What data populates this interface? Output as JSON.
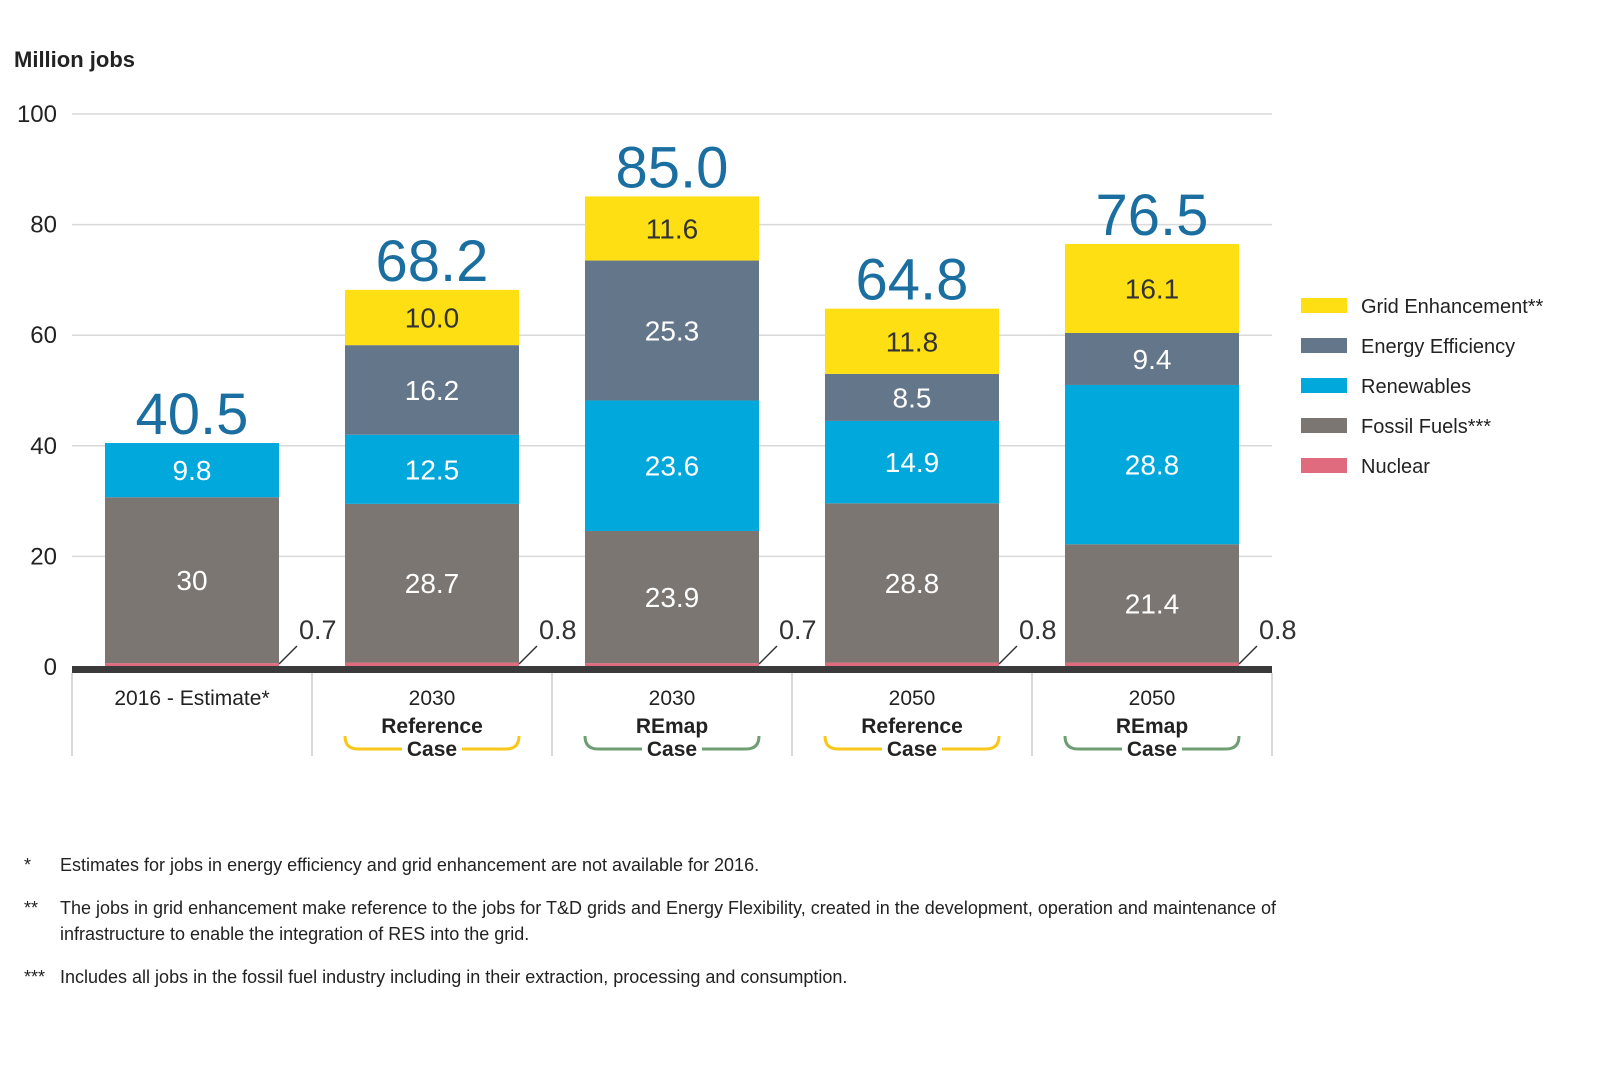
{
  "chart_data": {
    "type": "bar",
    "stacked": true,
    "ylabel": "Million jobs",
    "ylim": [
      0,
      100
    ],
    "yticks": [
      0,
      20,
      40,
      60,
      80,
      100
    ],
    "grid": true,
    "legend_position": "right",
    "categories": [
      {
        "year": "2016 - Estimate*",
        "case": "",
        "bracket": "none"
      },
      {
        "year": "2030",
        "case": "Reference Case",
        "case_line1": "Reference",
        "case_line2": "Case",
        "bracket": "reference"
      },
      {
        "year": "2030",
        "case": "REmap Case",
        "case_line1": "REmap",
        "case_line2": "Case",
        "bracket": "remap"
      },
      {
        "year": "2050",
        "case": "Reference Case",
        "case_line1": "Reference",
        "case_line2": "Case",
        "bracket": "reference"
      },
      {
        "year": "2050",
        "case": "REmap Case",
        "case_line1": "REmap",
        "case_line2": "Case",
        "bracket": "remap"
      }
    ],
    "series": [
      {
        "name": "Nuclear",
        "key": "nuclear",
        "color": "#e06a7e",
        "values": [
          0.7,
          0.8,
          0.7,
          0.8,
          0.8
        ],
        "labels": [
          "0.7",
          "0.8",
          "0.7",
          "0.8",
          "0.8"
        ]
      },
      {
        "name": "Fossil Fuels***",
        "key": "fossil",
        "color": "#7b7672",
        "values": [
          30,
          28.7,
          23.9,
          28.8,
          21.4
        ],
        "labels": [
          "30",
          "28.7",
          "23.9",
          "28.8",
          "21.4"
        ]
      },
      {
        "name": "Renewables",
        "key": "renewables",
        "color": "#00a8dc",
        "values": [
          9.8,
          12.5,
          23.6,
          14.9,
          28.8
        ],
        "labels": [
          "9.8",
          "12.5",
          "23.6",
          "14.9",
          "28.8"
        ]
      },
      {
        "name": "Energy Efficiency",
        "key": "efficiency",
        "color": "#647689",
        "values": [
          0,
          16.2,
          25.3,
          8.5,
          9.4
        ],
        "labels": [
          "",
          "16.2",
          "25.3",
          "8.5",
          "9.4"
        ]
      },
      {
        "name": "Grid Enhancement**",
        "key": "grid",
        "color": "#fddf14",
        "values": [
          0,
          10.0,
          11.6,
          11.8,
          16.1
        ],
        "labels": [
          "",
          "10.0",
          "11.6",
          "11.8",
          "16.1"
        ]
      }
    ],
    "legend_order": [
      "Grid Enhancement**",
      "Energy Efficiency",
      "Renewables",
      "Fossil Fuels***",
      "Nuclear"
    ],
    "totals": [
      "40.5",
      "68.2",
      "85.0",
      "64.8",
      "76.5"
    ],
    "colors": {
      "total_label": "#1a6fa0",
      "reference_bracket": "#f7c81a",
      "remap_bracket": "#6e9e72",
      "grid": "#d9d9d9",
      "baseline": "#3a3a3a"
    }
  },
  "footnotes": [
    {
      "mark": "*",
      "text": "Estimates for jobs in energy efficiency and grid enhancement are not available for 2016."
    },
    {
      "mark": "**",
      "text": "The jobs in grid enhancement make reference to the jobs for T&D grids and Energy Flexibility, created in the development, operation and maintenance of infrastructure to enable the integration of RES into the grid."
    },
    {
      "mark": "***",
      "text": "Includes all jobs in the fossil fuel industry including in their extraction, processing and consumption."
    }
  ]
}
